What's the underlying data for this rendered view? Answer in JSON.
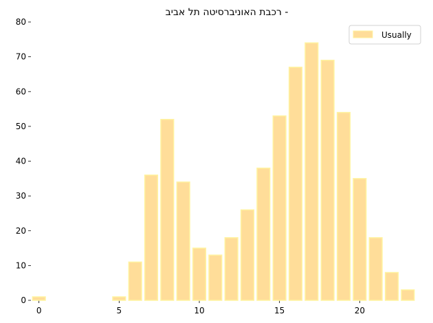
{
  "chart_data": {
    "type": "bar",
    "title": "רכבת האוניברסיטה תל אביב -",
    "xlabel": "",
    "ylabel": "",
    "x": [
      0,
      1,
      2,
      3,
      4,
      5,
      6,
      7,
      8,
      9,
      10,
      11,
      12,
      13,
      14,
      15,
      16,
      17,
      18,
      19,
      20,
      21,
      22,
      23
    ],
    "series": [
      {
        "name": "Usually",
        "values": [
          1,
          0,
          0,
          0,
          0,
          1,
          11,
          36,
          52,
          34,
          15,
          13,
          18,
          26,
          38,
          53,
          67,
          74,
          69,
          54,
          35,
          18,
          8,
          3
        ]
      }
    ],
    "xlim": [
      -0.5,
      23.5
    ],
    "ylim": [
      0,
      80
    ],
    "xticks": [
      "0",
      "5",
      "10",
      "15",
      "20"
    ],
    "yticks": [
      "0",
      "10",
      "20",
      "30",
      "40",
      "50",
      "60",
      "70",
      "80"
    ],
    "grid": false,
    "legend_position": "top-right",
    "colors": {
      "bar_fill": "#FFDD99",
      "bar_edge": "#FFF3A0"
    }
  }
}
